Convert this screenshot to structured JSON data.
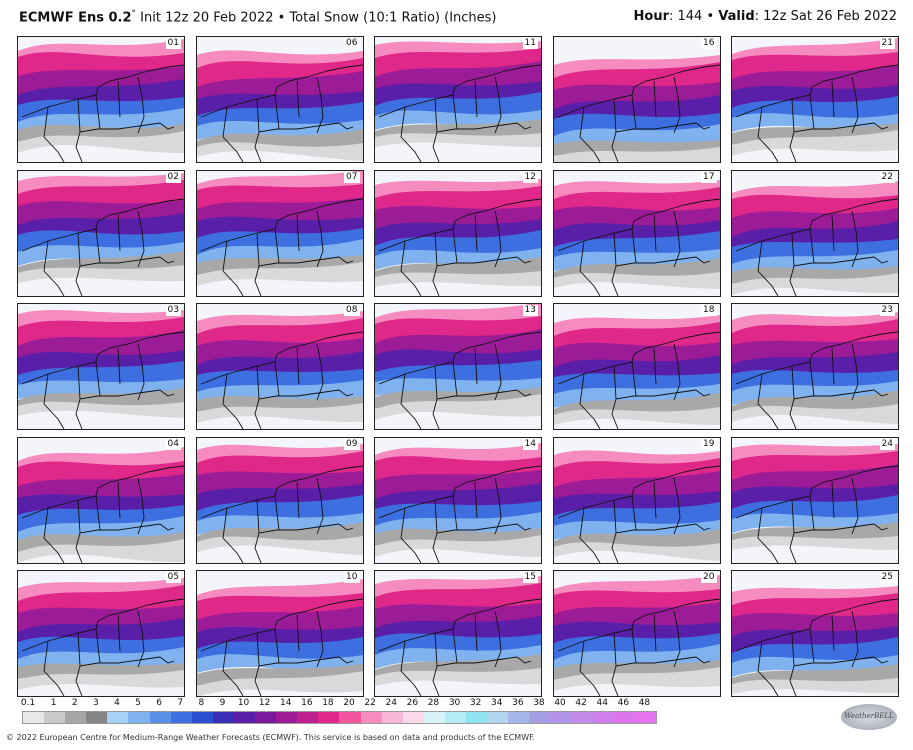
{
  "header": {
    "model_name": "ECMWF Ens 0.2",
    "degree_mark": "°",
    "init_text": "Init 12z 20 Feb 2022",
    "bullet": "•",
    "field_text": "Total Snow (10:1 Ratio) (Inches)",
    "hour_label": "Hour",
    "hour_value": ": 144 •",
    "valid_label": "Valid",
    "valid_value": ": 12z Sat 26 Feb 2022"
  },
  "members": [
    "01",
    "06",
    "11",
    "16",
    "21",
    "02",
    "07",
    "12",
    "17",
    "22",
    "03",
    "08",
    "13",
    "18",
    "23",
    "04",
    "09",
    "14",
    "19",
    "24",
    "05",
    "10",
    "15",
    "20",
    "25"
  ],
  "panel_intensity": [
    [
      0.85,
      0.55,
      0.9,
      0.35,
      0.8
    ],
    [
      0.9,
      0.9,
      0.75,
      0.7,
      0.55
    ],
    [
      0.85,
      0.7,
      0.9,
      0.6,
      0.7
    ],
    [
      0.55,
      0.8,
      0.75,
      0.6,
      0.85
    ],
    [
      0.7,
      0.55,
      0.8,
      0.75,
      0.5
    ]
  ],
  "colorbar": {
    "ticks": [
      "0.1",
      "1",
      "2",
      "3",
      "4",
      "5",
      "6",
      "7",
      "8",
      "9",
      "10",
      "12",
      "14",
      "16",
      "18",
      "20",
      "22",
      "24",
      "26",
      "28",
      "30",
      "32",
      "34",
      "36",
      "38",
      "40",
      "42",
      "44",
      "46",
      "48"
    ],
    "colors": [
      "#e8e8e8",
      "#c9c9c9",
      "#a6a6a6",
      "#858585",
      "#a9d0f5",
      "#7fb2ef",
      "#5a90e8",
      "#3d6fe0",
      "#2c4fcf",
      "#3a2fb5",
      "#5a1fa8",
      "#7a1a9e",
      "#9b1c96",
      "#c0208f",
      "#e0288a",
      "#f0559e",
      "#f58bbf",
      "#f8b7d6",
      "#fbd9ea",
      "#d6f2f8",
      "#b3ecf3",
      "#8fe2ef",
      "#b1d6ee",
      "#a3b8e8",
      "#a79fe6",
      "#b394e8",
      "#c28ae9",
      "#d07eeb",
      "#dd76ee",
      "#e574f0"
    ]
  },
  "footer": "© 2022 European Centre for Medium-Range Weather Forecasts (ECMWF). This service is based on data and products of the ECMWF.",
  "logo_text": "WeatherBELL"
}
